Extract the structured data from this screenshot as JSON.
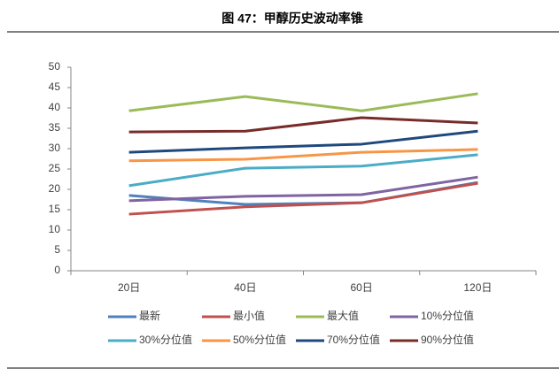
{
  "chart_data": {
    "type": "line",
    "title": "图 47：甲醇历史波动率锥",
    "categories": [
      "20日",
      "40日",
      "60日",
      "120日"
    ],
    "series": [
      {
        "name": "最新",
        "color": "#4f81bd",
        "values": [
          18.5,
          16.3,
          16.7,
          21.7
        ]
      },
      {
        "name": "最小值",
        "color": "#c0504d",
        "values": [
          13.9,
          15.7,
          16.7,
          21.5
        ]
      },
      {
        "name": "最大值",
        "color": "#9bbb59",
        "values": [
          39.3,
          42.8,
          39.3,
          43.5
        ]
      },
      {
        "name": "10%分位值",
        "color": "#8064a2",
        "values": [
          17.2,
          18.3,
          18.7,
          23.0
        ]
      },
      {
        "name": "30%分位值",
        "color": "#4bacc6",
        "values": [
          20.9,
          25.2,
          25.7,
          28.5
        ]
      },
      {
        "name": "50%分位值",
        "color": "#f79646",
        "values": [
          27.0,
          27.4,
          29.1,
          29.8
        ]
      },
      {
        "name": "70%分位值",
        "color": "#1f497d",
        "values": [
          29.1,
          30.2,
          31.1,
          34.3
        ]
      },
      {
        "name": "90%分位值",
        "color": "#772c2a",
        "values": [
          34.1,
          34.3,
          37.6,
          36.3
        ]
      }
    ],
    "ylim": [
      0,
      50
    ],
    "yticks": [
      0,
      5,
      10,
      15,
      20,
      25,
      30,
      35,
      40,
      45,
      50
    ],
    "grid": false
  }
}
